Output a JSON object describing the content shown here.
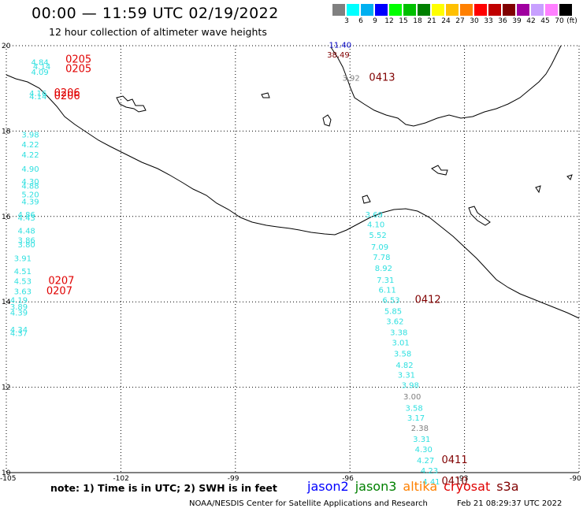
{
  "header": {
    "title": "00:00 — 11:59 UTC 02/19/2022",
    "subtitle": "12 hour collection of altimeter wave heights"
  },
  "scale": {
    "unit": "(ft)",
    "colors": [
      "#808080",
      "#00ffff",
      "#00b0f0",
      "#0000ff",
      "#00ff00",
      "#00c000",
      "#008000",
      "#ffff00",
      "#ffc000",
      "#ff8000",
      "#ff0000",
      "#c00000",
      "#800000",
      "#a000a0",
      "#c8a0ff",
      "#ff80ff",
      "#000000"
    ],
    "ticks": [
      "3",
      "6",
      "9",
      "12",
      "15",
      "18",
      "21",
      "24",
      "27",
      "30",
      "33",
      "36",
      "39",
      "42",
      "45",
      "70"
    ]
  },
  "axes": {
    "lat_labels": [
      "20",
      "18",
      "16",
      "14",
      "12",
      "10"
    ],
    "lon_labels": [
      "-105",
      "-102",
      "-99",
      "-96",
      "-93",
      "-90"
    ]
  },
  "map_data": {
    "west_pass": [
      {
        "lon": -104.35,
        "lat": 19.55,
        "v": "4.84",
        "c": "#30e0e0"
      },
      {
        "lon": -104.3,
        "lat": 19.45,
        "v": "4.14",
        "c": "#30e0e0"
      },
      {
        "lon": -104.35,
        "lat": 19.32,
        "v": "4.09",
        "c": "#30e0e0"
      },
      {
        "lon": -104.4,
        "lat": 18.82,
        "v": "4.16",
        "c": "#30e0e0"
      },
      {
        "lon": -104.4,
        "lat": 18.75,
        "v": "4.14",
        "c": "#30e0e0"
      },
      {
        "lon": -104.6,
        "lat": 17.85,
        "v": "3.98",
        "c": "#30e0e0"
      },
      {
        "lon": -104.6,
        "lat": 17.62,
        "v": "4.22",
        "c": "#30e0e0"
      },
      {
        "lon": -104.6,
        "lat": 17.38,
        "v": "4.22",
        "c": "#30e0e0"
      },
      {
        "lon": -104.6,
        "lat": 17.05,
        "v": "4.90",
        "c": "#30e0e0"
      },
      {
        "lon": -104.6,
        "lat": 16.75,
        "v": "4.30",
        "c": "#30e0e0"
      },
      {
        "lon": -104.6,
        "lat": 16.65,
        "v": "4.88",
        "c": "#30e0e0"
      },
      {
        "lon": -104.6,
        "lat": 16.45,
        "v": "5.20",
        "c": "#30e0e0"
      },
      {
        "lon": -104.6,
        "lat": 16.28,
        "v": "4.39",
        "c": "#30e0e0"
      },
      {
        "lon": -104.7,
        "lat": 15.98,
        "v": "4.86",
        "c": "#30e0e0"
      },
      {
        "lon": -104.7,
        "lat": 15.9,
        "v": "4.43",
        "c": "#30e0e0"
      },
      {
        "lon": -104.7,
        "lat": 15.6,
        "v": "4.48",
        "c": "#30e0e0"
      },
      {
        "lon": -104.7,
        "lat": 15.38,
        "v": "3.86",
        "c": "#30e0e0"
      },
      {
        "lon": -104.7,
        "lat": 15.28,
        "v": "3.80",
        "c": "#30e0e0"
      },
      {
        "lon": -104.8,
        "lat": 14.95,
        "v": "3.91",
        "c": "#30e0e0"
      },
      {
        "lon": -104.8,
        "lat": 14.65,
        "v": "4.51",
        "c": "#30e0e0"
      },
      {
        "lon": -104.8,
        "lat": 14.42,
        "v": "4.53",
        "c": "#30e0e0"
      },
      {
        "lon": -104.8,
        "lat": 14.18,
        "v": "3.63",
        "c": "#30e0e0"
      },
      {
        "lon": -104.9,
        "lat": 13.98,
        "v": "4.19",
        "c": "#30e0e0"
      },
      {
        "lon": -104.9,
        "lat": 13.82,
        "v": "3.89",
        "c": "#30e0e0"
      },
      {
        "lon": -104.9,
        "lat": 13.68,
        "v": "4.39",
        "c": "#30e0e0"
      },
      {
        "lon": -104.9,
        "lat": 13.28,
        "v": "4.34",
        "c": "#30e0e0"
      },
      {
        "lon": -104.9,
        "lat": 13.2,
        "v": "4.37",
        "c": "#30e0e0"
      }
    ],
    "west_passes_time": [
      {
        "lon": -103.45,
        "lat": 19.6,
        "t": "0205",
        "c": "#e00000"
      },
      {
        "lon": -103.45,
        "lat": 19.38,
        "t": "0205",
        "c": "#e00000"
      },
      {
        "lon": -103.75,
        "lat": 18.82,
        "t": "0206",
        "c": "#e00000"
      },
      {
        "lon": -103.75,
        "lat": 18.75,
        "t": "0206",
        "c": "#e00000"
      },
      {
        "lon": -103.9,
        "lat": 14.42,
        "t": "0207",
        "c": "#e00000"
      },
      {
        "lon": -103.95,
        "lat": 14.18,
        "t": "0207",
        "c": "#e00000"
      }
    ],
    "east_pass": [
      {
        "lon": -95.6,
        "lat": 15.98,
        "v": "3.69",
        "c": "#30e0e0"
      },
      {
        "lon": -95.55,
        "lat": 15.75,
        "v": "4.10",
        "c": "#30e0e0"
      },
      {
        "lon": -95.5,
        "lat": 15.5,
        "v": "5.52",
        "c": "#30e0e0"
      },
      {
        "lon": -95.45,
        "lat": 15.22,
        "v": "7.09",
        "c": "#30e0e0"
      },
      {
        "lon": -95.4,
        "lat": 14.98,
        "v": "7.78",
        "c": "#30e0e0"
      },
      {
        "lon": -95.35,
        "lat": 14.72,
        "v": "8.92",
        "c": "#30e0e0"
      },
      {
        "lon": -95.3,
        "lat": 14.45,
        "v": "7.31",
        "c": "#30e0e0"
      },
      {
        "lon": -95.25,
        "lat": 14.22,
        "v": "6.11",
        "c": "#30e0e0"
      },
      {
        "lon": -95.15,
        "lat": 13.98,
        "v": "6.53",
        "c": "#30e0e0"
      },
      {
        "lon": -95.1,
        "lat": 13.72,
        "v": "5.85",
        "c": "#30e0e0"
      },
      {
        "lon": -95.05,
        "lat": 13.48,
        "v": "3.62",
        "c": "#30e0e0"
      },
      {
        "lon": -94.95,
        "lat": 13.22,
        "v": "3.38",
        "c": "#30e0e0"
      },
      {
        "lon": -94.9,
        "lat": 12.98,
        "v": "3.01",
        "c": "#30e0e0"
      },
      {
        "lon": -94.85,
        "lat": 12.72,
        "v": "3.58",
        "c": "#30e0e0"
      },
      {
        "lon": -94.8,
        "lat": 12.45,
        "v": "4.82",
        "c": "#30e0e0"
      },
      {
        "lon": -94.75,
        "lat": 12.22,
        "v": "3.31",
        "c": "#30e0e0"
      },
      {
        "lon": -94.65,
        "lat": 11.98,
        "v": "3.98",
        "c": "#30e0e0"
      },
      {
        "lon": -94.6,
        "lat": 11.72,
        "v": "3.00",
        "c": "#808080"
      },
      {
        "lon": -94.55,
        "lat": 11.45,
        "v": "3.58",
        "c": "#30e0e0"
      },
      {
        "lon": -94.5,
        "lat": 11.22,
        "v": "3.17",
        "c": "#30e0e0"
      },
      {
        "lon": -94.4,
        "lat": 10.98,
        "v": "2.38",
        "c": "#808080"
      },
      {
        "lon": -94.35,
        "lat": 10.72,
        "v": "3.31",
        "c": "#30e0e0"
      },
      {
        "lon": -94.3,
        "lat": 10.48,
        "v": "4.30",
        "c": "#30e0e0"
      },
      {
        "lon": -94.25,
        "lat": 10.22,
        "v": "4.27",
        "c": "#30e0e0"
      },
      {
        "lon": -94.15,
        "lat": 9.98,
        "v": "4.23",
        "c": "#30e0e0"
      },
      {
        "lon": -94.1,
        "lat": 9.72,
        "v": "4.41",
        "c": "#30e0e0"
      }
    ],
    "east_passes_time": [
      {
        "lon": -94.3,
        "lat": 13.98,
        "t": "0412",
        "c": "#800000"
      },
      {
        "lon": -93.6,
        "lat": 10.22,
        "t": "0411",
        "c": "#800000"
      },
      {
        "lon": -93.6,
        "lat": 9.72,
        "t": "0410",
        "c": "#800000"
      }
    ],
    "north_values": [
      {
        "lon": -96.55,
        "lat": 19.95,
        "v": "11.40",
        "c": "#0000c0"
      },
      {
        "lon": -96.6,
        "lat": 19.72,
        "v": "38.49",
        "c": "#800000"
      },
      {
        "lon": -96.2,
        "lat": 19.18,
        "v": "3.92",
        "c": "#808080"
      }
    ],
    "north_time": [
      {
        "lon": -95.5,
        "lat": 19.18,
        "t": "0413",
        "c": "#800000"
      }
    ]
  },
  "footer": {
    "note": "note: 1) Time is in UTC; 2) SWH is in feet",
    "satellites": [
      {
        "name": "jason2",
        "color": "#0000ff"
      },
      {
        "name": "jason3",
        "color": "#008000"
      },
      {
        "name": "altika",
        "color": "#ff8000"
      },
      {
        "name": "cryosat",
        "color": "#e00000"
      },
      {
        "name": "s3a",
        "color": "#800000"
      }
    ],
    "credit": "NOAA/NESDIS Center for Satellite Applications and Research",
    "timestamp": "Feb 21 08:29:37 UTC 2022"
  }
}
